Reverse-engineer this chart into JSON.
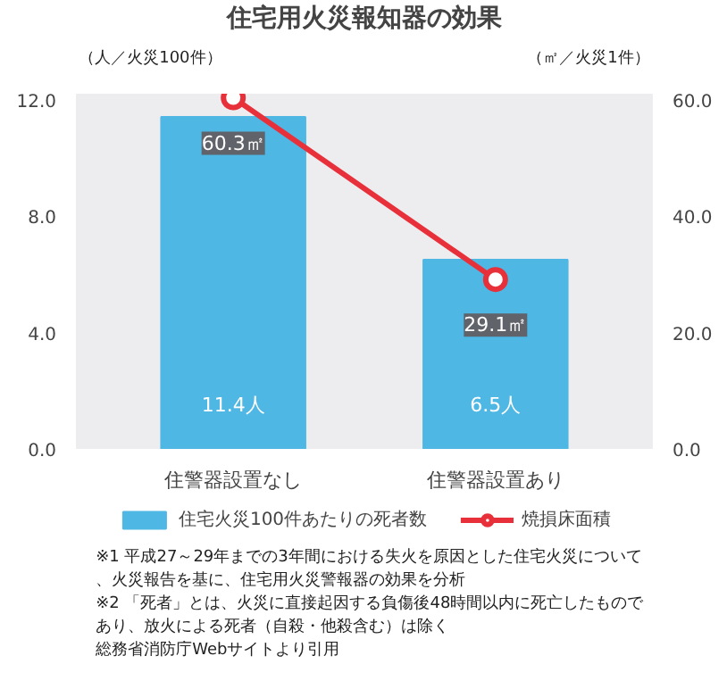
{
  "chart_data": {
    "type": "bar",
    "title": "住宅用火災報知器の効果",
    "ylabel": "（人／火災100件）",
    "y2label": "（㎡／火災1件）",
    "categories": [
      "住警器設置なし",
      "住警器設置あり"
    ],
    "series": [
      {
        "name": "住宅火災100件あたりの死者数",
        "color": "#4fb7e4",
        "values": [
          11.4,
          6.5
        ],
        "value_labels": [
          "11.4人",
          "6.5人"
        ]
      },
      {
        "name": "焼損床面積",
        "type": "line",
        "axis": "y2",
        "color": "#e8303a",
        "marker": "circle",
        "values": [
          60.3,
          29.1
        ],
        "value_labels": [
          "60.3㎡",
          "29.1㎡"
        ]
      }
    ],
    "ylim": [
      0,
      12.2
    ],
    "yticks": [
      {
        "value": 0,
        "label": "0.0"
      },
      {
        "value": 4,
        "label": "4.0"
      },
      {
        "value": 8,
        "label": "8.0"
      },
      {
        "value": 12,
        "label": "12.0"
      }
    ],
    "y2lim": [
      0,
      61
    ],
    "y2ticks": [
      {
        "value": 0,
        "label": "0.0"
      },
      {
        "value": 20,
        "label": "20.0"
      },
      {
        "value": 40,
        "label": "40.0"
      },
      {
        "value": 60,
        "label": "60.0"
      }
    ],
    "legend": "bottom",
    "annotations": [
      "※1 平成27～29年までの3年間における失火を原因とした住宅火災について、火災報告を基に、住宅用火災警報器の効果を分析",
      "※2 「死者」とは、火災に直接起因する負傷後48時間以内に死亡したものであり、放火による死者（自殺・他殺含む）は除く",
      "総務省消防庁Webサイトより引用"
    ]
  }
}
